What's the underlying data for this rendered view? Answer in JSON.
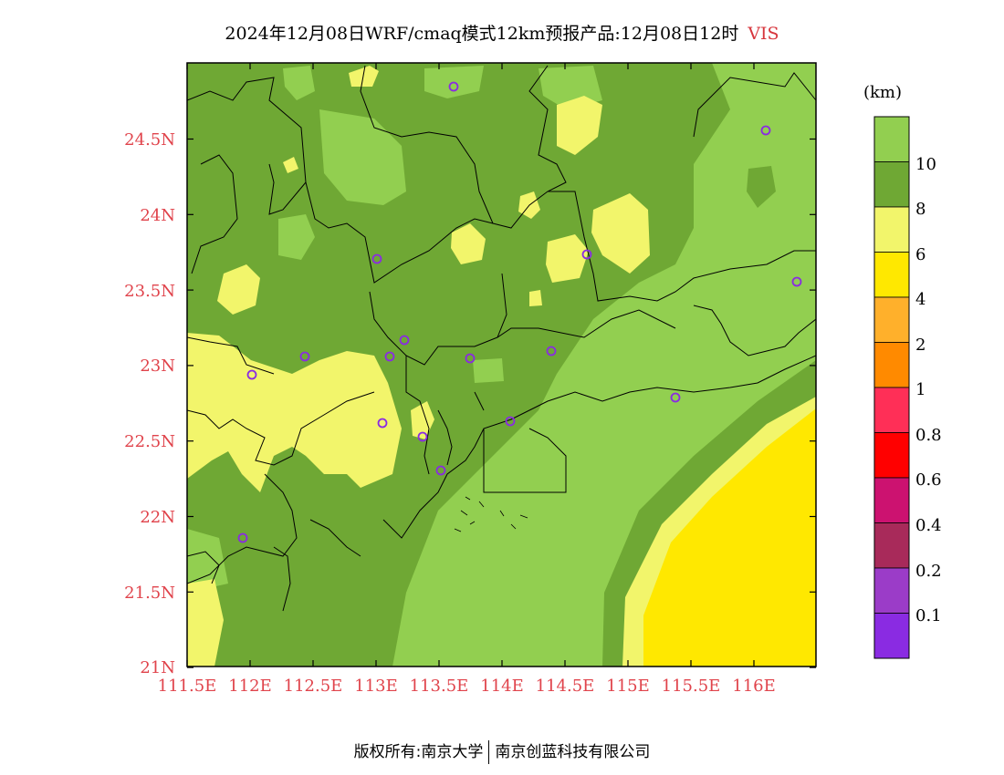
{
  "header": {
    "title": "2024年12月08日WRF/cmaq模式12km预报产品:12月08日12时",
    "variable": "VIS"
  },
  "axes": {
    "x_ticks": [
      "111.5E",
      "112E",
      "112.5E",
      "113E",
      "113.5E",
      "114E",
      "114.5E",
      "115E",
      "115.5E",
      "116E"
    ],
    "y_ticks": [
      "24.5N",
      "24N",
      "23.5N",
      "23N",
      "22.5N",
      "22N",
      "21.5N",
      "21N"
    ]
  },
  "colorbar": {
    "unit": "(km)",
    "labels": [
      "10",
      "8",
      "6",
      "4",
      "2",
      "1",
      "0.8",
      "0.6",
      "0.4",
      "0.2",
      "0.1"
    ],
    "colors": [
      "#92cf50",
      "#6fa834",
      "#f2f56b",
      "#ffe800",
      "#ffb02b",
      "#ff8a00",
      "#ff2f57",
      "#ff0000",
      "#cc1270",
      "#a82a5a",
      "#9b3cc8",
      "#8a2be2"
    ]
  },
  "station_marker_color": "#8a2be2",
  "footer": {
    "left": "版权所有:南京大学",
    "right": "南京创蓝科技有限公司"
  }
}
